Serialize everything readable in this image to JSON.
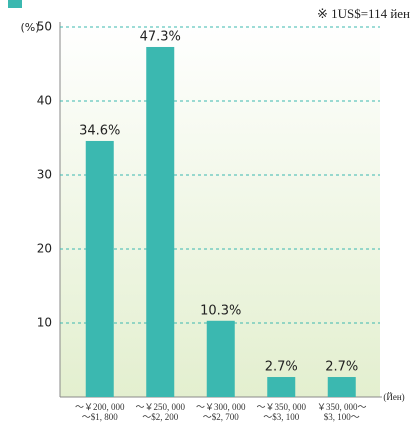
{
  "chart_data": {
    "type": "bar",
    "note": "※ 1US$=114 йен",
    "y_label": "(%)",
    "x_label": "(Йен)",
    "categories": [
      [
        "～￥200, 000",
        "～$1, 800"
      ],
      [
        "～￥250, 000",
        "～$2, 200"
      ],
      [
        "～￥300, 000",
        "～$2, 700"
      ],
      [
        "～￥350, 000",
        "～$3, 100"
      ],
      [
        "￥350, 000～",
        "$3, 100～"
      ]
    ],
    "values": [
      34.6,
      47.3,
      10.3,
      2.7,
      2.7
    ],
    "value_labels": [
      "34.6%",
      "47.3%",
      "10.3%",
      "2.7%",
      "2.7%"
    ],
    "color": "#3bb8b0",
    "ylim": [
      0,
      50
    ],
    "yticks": [
      10,
      20,
      30,
      40,
      50
    ],
    "grid": true
  }
}
